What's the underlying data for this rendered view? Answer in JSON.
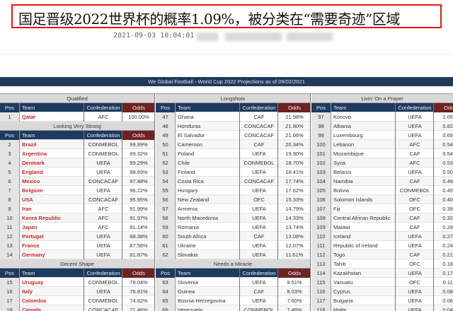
{
  "article": {
    "headline": "国足晋级2022世界杯的概率1.09%，被分类在“需要奇迹”区域",
    "timestamp": "2021-09-03 10:04:01"
  },
  "table": {
    "title": "We Global Football - World Cup 2022 Projections as of 09/02/2021",
    "columns": {
      "pos": "Pos",
      "team": "Team",
      "confederation": "Confederation",
      "odds": "Odds"
    },
    "colors": {
      "banner": "#1f3a5c",
      "header": "#1d3a5f",
      "odds_header": "#6e2222",
      "highlight_team": "#c8262b"
    },
    "panels": [
      {
        "sections": [
          {
            "title": "Qualified",
            "rows": [
              [
                "1",
                "Qatar",
                "AFC",
                "100.00%"
              ]
            ]
          },
          {
            "title": "Looking Very Strong",
            "rows": [
              [
                "2",
                "Brazil",
                "CONMEBOL",
                "99.99%"
              ],
              [
                "3",
                "Argentina",
                "CONMEBOL",
                "99.32%"
              ],
              [
                "4",
                "Denmark",
                "UEFA",
                "99.29%"
              ],
              [
                "5",
                "England",
                "UEFA",
                "98.93%"
              ],
              [
                "6",
                "Mexico",
                "CONCACAF",
                "97.48%"
              ],
              [
                "7",
                "Belgium",
                "UEFA",
                "96.22%"
              ],
              [
                "8",
                "USA",
                "CONCACAF",
                "95.95%"
              ],
              [
                "9",
                "Iran",
                "AFC",
                "91.99%"
              ],
              [
                "10",
                "Korea Republic",
                "AFC",
                "91.97%"
              ],
              [
                "11",
                "Japan",
                "AFC",
                "91.14%"
              ],
              [
                "12",
                "Portugal",
                "UEFA",
                "88.38%"
              ],
              [
                "13",
                "France",
                "UEFA",
                "87.58%"
              ],
              [
                "14",
                "Germany",
                "UEFA",
                "81.87%"
              ]
            ]
          },
          {
            "title": "Decent Shape",
            "rows": [
              [
                "15",
                "Uruguay",
                "CONMEBOL",
                "78.04%"
              ],
              [
                "16",
                "Italy",
                "UEFA",
                "76.81%"
              ],
              [
                "17",
                "Colombia",
                "CONMEBOL",
                "74.82%"
              ],
              [
                "18",
                "Canada",
                "CONCACAF",
                "71.46%"
              ]
            ]
          }
        ]
      },
      {
        "sections": [
          {
            "title": "Longshots",
            "rows": [
              [
                "47",
                "Ghana",
                "CAF",
                "21.98%"
              ],
              [
                "48",
                "Honduras",
                "CONCACAF",
                "21.80%"
              ],
              [
                "49",
                "El Salvador",
                "CONCACAF",
                "21.06%"
              ],
              [
                "50",
                "Cameroon",
                "CAF",
                "20.34%"
              ],
              [
                "51",
                "Poland",
                "UEFA",
                "19.90%"
              ],
              [
                "52",
                "Chile",
                "CONMEBOL",
                "18.70%"
              ],
              [
                "53",
                "Finland",
                "UEFA",
                "18.41%"
              ],
              [
                "54",
                "Costa Rica",
                "CONCACAF",
                "17.74%"
              ],
              [
                "55",
                "Hungary",
                "UEFA",
                "17.62%"
              ],
              [
                "56",
                "New Zealand",
                "OFC",
                "15.33%"
              ],
              [
                "57",
                "Armenia",
                "UEFA",
                "14.79%"
              ],
              [
                "58",
                "North Macedonia",
                "UEFA",
                "14.33%"
              ],
              [
                "59",
                "Romania",
                "UEFA",
                "13.74%"
              ],
              [
                "60",
                "South Africa",
                "CAF",
                "13.06%"
              ],
              [
                "61",
                "Ukraine",
                "UEFA",
                "12.07%"
              ],
              [
                "62",
                "Slovakia",
                "UEFA",
                "11.61%"
              ]
            ]
          },
          {
            "title": "Needs a Miracle",
            "rows": [
              [
                "63",
                "Slovenia",
                "UEFA",
                "9.51%"
              ],
              [
                "64",
                "Guinea",
                "CAF",
                "8.03%"
              ],
              [
                "65",
                "Bosnia-Herzegovina",
                "UEFA",
                "7.60%"
              ],
              [
                "66",
                "Venezuela",
                "CONMEBOL",
                "7.48%"
              ]
            ]
          }
        ]
      },
      {
        "sections": [
          {
            "title": "Livin' On a Prayer",
            "rows": [
              [
                "97",
                "Kosovo",
                "UEFA",
                "1.05%"
              ],
              [
                "98",
                "Albania",
                "UEFA",
                "0.82%"
              ],
              [
                "99",
                "Luxembourg",
                "UEFA",
                "0.69%"
              ],
              [
                "100",
                "Lebanon",
                "AFC",
                "0.54%"
              ],
              [
                "101",
                "Mozambique",
                "CAF",
                "0.54%"
              ],
              [
                "102",
                "Syria",
                "AFC",
                "0.53%"
              ],
              [
                "103",
                "Belarus",
                "UEFA",
                "0.50%"
              ],
              [
                "104",
                "Namibia",
                "CAF",
                "0.49%"
              ],
              [
                "105",
                "Bolivia",
                "CONMEBOL",
                "0.45%"
              ],
              [
                "106",
                "Solomon Islands",
                "OFC",
                "0.40%"
              ],
              [
                "107",
                "Fiji",
                "OFC",
                "0.39%"
              ],
              [
                "108",
                "Central African Republic",
                "CAF",
                "0.32%"
              ],
              [
                "109",
                "Malawi",
                "CAF",
                "0.28%"
              ],
              [
                "110",
                "Iceland",
                "UEFA",
                "0.27%"
              ],
              [
                "111",
                "Republic of Ireland",
                "UEFA",
                "0.24%"
              ],
              [
                "112",
                "Togo",
                "CAF",
                "0.21%"
              ],
              [
                "113",
                "Tahiti",
                "OFC",
                "0.18%"
              ],
              [
                "114",
                "Kazakhstan",
                "UEFA",
                "0.17%"
              ],
              [
                "115",
                "Vanuatu",
                "OFC",
                "0.11%"
              ],
              [
                "116",
                "Cyprus",
                "UEFA",
                "0.08%"
              ],
              [
                "117",
                "Bulgaria",
                "UEFA",
                "0.06%"
              ],
              [
                "118",
                "Malta",
                "UEFA",
                "0.04%"
              ]
            ]
          }
        ]
      }
    ]
  }
}
